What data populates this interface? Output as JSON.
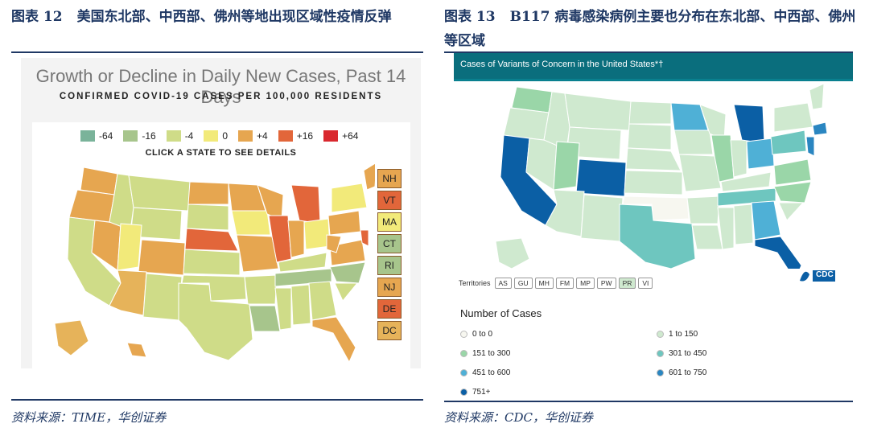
{
  "left": {
    "fig_label": "图表",
    "fig_num": "12",
    "fig_title": "美国东北部、中西部、佛州等地出现区域性疫情反弹",
    "chart_title": "Growth or Decline in Daily New Cases, Past 14 Days",
    "chart_subtitle": "CONFIRMED COVID-19 CASES PER 100,000 RESIDENTS",
    "legend": [
      {
        "label": "-64",
        "color": "#7ab39a"
      },
      {
        "label": "-16",
        "color": "#a7c58c"
      },
      {
        "label": "-4",
        "color": "#cfdc88"
      },
      {
        "label": "0",
        "color": "#f2ea7a"
      },
      {
        "label": "+4",
        "color": "#e6a650"
      },
      {
        "label": "+16",
        "color": "#e2663a"
      },
      {
        "label": "+64",
        "color": "#d9282e"
      }
    ],
    "instruction": "CLICK A STATE TO SEE DETAILS",
    "ne_states": [
      {
        "label": "NH",
        "color": "#e6a650"
      },
      {
        "label": "VT",
        "color": "#e2663a"
      },
      {
        "label": "MA",
        "color": "#f2ea7a"
      },
      {
        "label": "CT",
        "color": "#a7c58c"
      },
      {
        "label": "RI",
        "color": "#a7c58c"
      },
      {
        "label": "NJ",
        "color": "#e6a650"
      },
      {
        "label": "DE",
        "color": "#e2663a"
      },
      {
        "label": "DC",
        "color": "#e6b35a"
      }
    ],
    "source": "资料来源：TIME，华创证券"
  },
  "right": {
    "fig_label": "图表",
    "fig_num": "13",
    "fig_title": "B117 病毒感染病例主要也分布在东北部、中西部、佛州等区域",
    "chart_title": "Cases of Variants of Concern in the United States*†",
    "territories_label": "Territories",
    "territories": [
      "AS",
      "GU",
      "MH",
      "FM",
      "MP",
      "PW",
      "PR",
      "VI"
    ],
    "logo_text": "CDC",
    "legend_title": "Number of Cases",
    "legend": [
      {
        "label": "0 to 0",
        "color": "#f7f7f0"
      },
      {
        "label": "1 to 150",
        "color": "#cfe9cf"
      },
      {
        "label": "151 to 300",
        "color": "#9ad6a8"
      },
      {
        "label": "301 to 450",
        "color": "#6ec6bf"
      },
      {
        "label": "451 to 600",
        "color": "#4fb0d6"
      },
      {
        "label": "601 to 750",
        "color": "#2a86c1"
      },
      {
        "label": "751+",
        "color": "#0b5fa5"
      }
    ],
    "source": "资料来源：CDC，华创证券"
  }
}
